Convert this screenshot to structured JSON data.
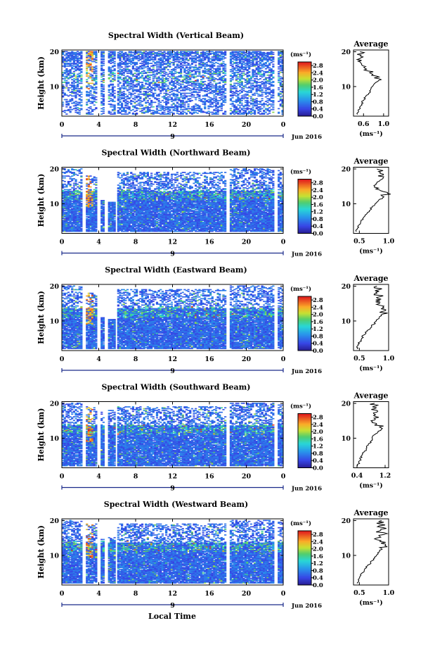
{
  "figure": {
    "xlabel": "Local Time"
  },
  "chart_data": [
    {
      "panel": 1,
      "type": "heatmap",
      "title": "Spectral Width (Vertical Beam)",
      "ylabel": "Height (km)",
      "x_ticks": [
        "0",
        "4",
        "8",
        "12",
        "16",
        "20",
        "0"
      ],
      "y_ticks": [
        "20",
        "10"
      ],
      "date_label": "9",
      "month_label": "Jun 2016",
      "xlim": [
        0,
        24
      ],
      "ylim": [
        1.5,
        20.5
      ],
      "gaps": [
        [
          2.1,
          2.6
        ],
        [
          3.8,
          4.2
        ],
        [
          4.7,
          5.1
        ],
        [
          5.8,
          6.0
        ],
        [
          17.7,
          18.1
        ],
        [
          23.0,
          23.3
        ]
      ],
      "top_limit_by_segment": [
        20.0,
        20.0,
        20.0,
        20.0,
        20.0,
        20.0,
        20.0
      ],
      "colorbar": {
        "unit": "(ms⁻¹)",
        "ticks": [
          "2.8",
          "2.4",
          "2.0",
          "1.6",
          "1.2",
          "0.8",
          "0.4",
          "0.0"
        ],
        "range": [
          0.0,
          3.0
        ]
      },
      "average_profile": {
        "title": "Average",
        "xlabel": "(ms⁻¹)",
        "x_ticks": [
          "0.6",
          "1.0"
        ],
        "xlim": [
          0.4,
          1.1
        ],
        "y_ticks": [
          "20",
          "10"
        ],
        "ylim": [
          1.5,
          20.5
        ],
        "height_km": [
          2,
          3,
          4,
          5,
          6,
          7,
          8,
          9,
          10,
          11,
          12,
          13,
          14,
          15,
          16,
          17,
          18,
          19,
          20
        ],
        "width": [
          0.48,
          0.5,
          0.52,
          0.56,
          0.6,
          0.64,
          0.7,
          0.74,
          0.78,
          0.83,
          0.95,
          0.86,
          0.72,
          0.66,
          0.58,
          0.54,
          0.52,
          0.55,
          0.53
        ]
      }
    },
    {
      "panel": 2,
      "type": "heatmap",
      "title": "Spectral Width (Northward Beam)",
      "ylabel": "Height (km)",
      "x_ticks": [
        "0",
        "4",
        "8",
        "12",
        "16",
        "20",
        "0"
      ],
      "y_ticks": [
        "20",
        "10"
      ],
      "date_label": "9",
      "month_label": "Jun 2016",
      "xlim": [
        0,
        24
      ],
      "ylim": [
        1.5,
        20.5
      ],
      "gaps": [
        [
          2.1,
          2.6
        ],
        [
          3.8,
          4.2
        ],
        [
          4.7,
          5.1
        ],
        [
          5.8,
          6.0
        ],
        [
          17.7,
          18.1
        ],
        [
          23.0,
          23.3
        ]
      ],
      "top_limit_by_segment": [
        20.0,
        18.0,
        11.0,
        10.5,
        19.0,
        20.0,
        19.5
      ],
      "colorbar": {
        "unit": "(ms⁻¹)",
        "ticks": [
          "2.8",
          "2.4",
          "2.0",
          "1.6",
          "1.2",
          "0.8",
          "0.4",
          "0.0"
        ],
        "range": [
          0.0,
          3.0
        ]
      },
      "average_profile": {
        "title": "Average",
        "xlabel": "(ms⁻¹)",
        "x_ticks": [
          "0.5",
          "1.0"
        ],
        "xlim": [
          0.4,
          1.0
        ],
        "y_ticks": [
          "20",
          "10"
        ],
        "ylim": [
          1.5,
          20.5
        ],
        "height_km": [
          2,
          3,
          4,
          5,
          6,
          7,
          8,
          9,
          10,
          11,
          12,
          13,
          14,
          15,
          16,
          17,
          18,
          19,
          20
        ],
        "width": [
          0.45,
          0.47,
          0.5,
          0.53,
          0.57,
          0.62,
          0.67,
          0.72,
          0.77,
          0.83,
          0.92,
          0.98,
          0.84,
          0.76,
          0.8,
          0.88,
          0.82,
          0.86,
          0.8
        ]
      }
    },
    {
      "panel": 3,
      "type": "heatmap",
      "title": "Spectral Width (Eastward Beam)",
      "ylabel": "Height (km)",
      "x_ticks": [
        "0",
        "4",
        "8",
        "12",
        "16",
        "20",
        "0"
      ],
      "y_ticks": [
        "20",
        "10"
      ],
      "date_label": "9",
      "month_label": "Jun 2016",
      "xlim": [
        0,
        24
      ],
      "ylim": [
        1.5,
        20.5
      ],
      "gaps": [
        [
          2.1,
          2.6
        ],
        [
          3.8,
          4.2
        ],
        [
          4.7,
          5.1
        ],
        [
          5.8,
          6.0
        ],
        [
          17.7,
          18.1
        ],
        [
          23.0,
          23.3
        ]
      ],
      "top_limit_by_segment": [
        20.0,
        18.0,
        11.0,
        10.5,
        19.0,
        20.0,
        19.5
      ],
      "colorbar": {
        "unit": "(ms⁻¹)",
        "ticks": [
          "2.8",
          "2.4",
          "2.0",
          "1.6",
          "1.2",
          "0.8",
          "0.4",
          "0.0"
        ],
        "range": [
          0.0,
          3.0
        ]
      },
      "average_profile": {
        "title": "Average",
        "xlabel": "(ms⁻¹)",
        "x_ticks": [
          "0.5",
          "1.0"
        ],
        "xlim": [
          0.4,
          1.0
        ],
        "y_ticks": [
          "20",
          "10"
        ],
        "ylim": [
          1.5,
          20.5
        ],
        "height_km": [
          2,
          3,
          4,
          5,
          6,
          7,
          8,
          9,
          10,
          11,
          12,
          13,
          14,
          15,
          16,
          17,
          18,
          19,
          20
        ],
        "width": [
          0.46,
          0.48,
          0.51,
          0.54,
          0.58,
          0.63,
          0.69,
          0.74,
          0.79,
          0.84,
          0.9,
          0.95,
          0.9,
          0.84,
          0.78,
          0.86,
          0.8,
          0.84,
          0.8
        ]
      }
    },
    {
      "panel": 4,
      "type": "heatmap",
      "title": "Spectral Width (Southward Beam)",
      "ylabel": "Height (km)",
      "x_ticks": [
        "0",
        "4",
        "8",
        "12",
        "16",
        "20",
        "0"
      ],
      "y_ticks": [
        "20",
        "10"
      ],
      "date_label": "9",
      "month_label": "Jun 2016",
      "xlim": [
        0,
        24
      ],
      "ylim": [
        1.5,
        20.5
      ],
      "gaps": [
        [
          2.1,
          2.6
        ],
        [
          3.8,
          4.2
        ],
        [
          4.7,
          5.1
        ],
        [
          5.8,
          6.0
        ],
        [
          17.7,
          18.1
        ],
        [
          23.0,
          23.3
        ]
      ],
      "top_limit_by_segment": [
        20.0,
        19.0,
        18.0,
        18.0,
        19.0,
        20.0,
        19.5
      ],
      "colorbar": {
        "unit": "(ms⁻¹)",
        "ticks": [
          "2.8",
          "2.4",
          "2.0",
          "1.6",
          "1.2",
          "0.8",
          "0.4",
          "0.0"
        ],
        "range": [
          0.0,
          3.0
        ]
      },
      "average_profile": {
        "title": "Average",
        "xlabel": "(ms⁻¹)",
        "x_ticks": [
          "0.4",
          "1.2"
        ],
        "xlim": [
          0.3,
          1.3
        ],
        "y_ticks": [
          "20",
          "10"
        ],
        "ylim": [
          1.5,
          20.5
        ],
        "height_km": [
          2,
          3,
          4,
          5,
          6,
          7,
          8,
          9,
          10,
          11,
          12,
          13,
          14,
          15,
          16,
          17,
          18,
          19,
          20
        ],
        "width": [
          0.42,
          0.45,
          0.49,
          0.54,
          0.6,
          0.66,
          0.72,
          0.78,
          0.84,
          0.9,
          1.0,
          1.08,
          0.96,
          0.8,
          1.02,
          0.88,
          0.96,
          0.84,
          0.9
        ]
      }
    },
    {
      "panel": 5,
      "type": "heatmap",
      "title": "Spectral Width (Westward Beam)",
      "ylabel": "Height (km)",
      "x_ticks": [
        "0",
        "4",
        "8",
        "12",
        "16",
        "20",
        "0"
      ],
      "y_ticks": [
        "20",
        "10"
      ],
      "date_label": "9",
      "month_label": "Jun 2016",
      "xlim": [
        0,
        24
      ],
      "ylim": [
        1.5,
        20.5
      ],
      "gaps": [
        [
          2.1,
          2.6
        ],
        [
          3.8,
          4.2
        ],
        [
          4.7,
          5.1
        ],
        [
          5.8,
          6.0
        ],
        [
          17.7,
          18.1
        ],
        [
          23.0,
          23.3
        ]
      ],
      "top_limit_by_segment": [
        20.0,
        19.0,
        15.0,
        15.0,
        19.0,
        20.0,
        19.5
      ],
      "colorbar": {
        "unit": "(ms⁻¹)",
        "ticks": [
          "2.8",
          "2.4",
          "2.0",
          "1.6",
          "1.2",
          "0.8",
          "0.4",
          "0.0"
        ],
        "range": [
          0.0,
          3.0
        ]
      },
      "average_profile": {
        "title": "Average",
        "xlabel": "(ms⁻¹)",
        "x_ticks": [
          "0.5",
          "1.0"
        ],
        "xlim": [
          0.4,
          1.0
        ],
        "y_ticks": [
          "20",
          "10"
        ],
        "ylim": [
          1.5,
          20.5
        ],
        "height_km": [
          2,
          3,
          4,
          5,
          6,
          7,
          8,
          9,
          10,
          11,
          12,
          13,
          14,
          15,
          16,
          17,
          18,
          19,
          20
        ],
        "width": [
          0.46,
          0.48,
          0.51,
          0.55,
          0.59,
          0.64,
          0.69,
          0.74,
          0.79,
          0.84,
          0.88,
          0.95,
          0.85,
          0.8,
          0.92,
          0.84,
          0.9,
          0.86,
          0.88
        ]
      }
    }
  ]
}
